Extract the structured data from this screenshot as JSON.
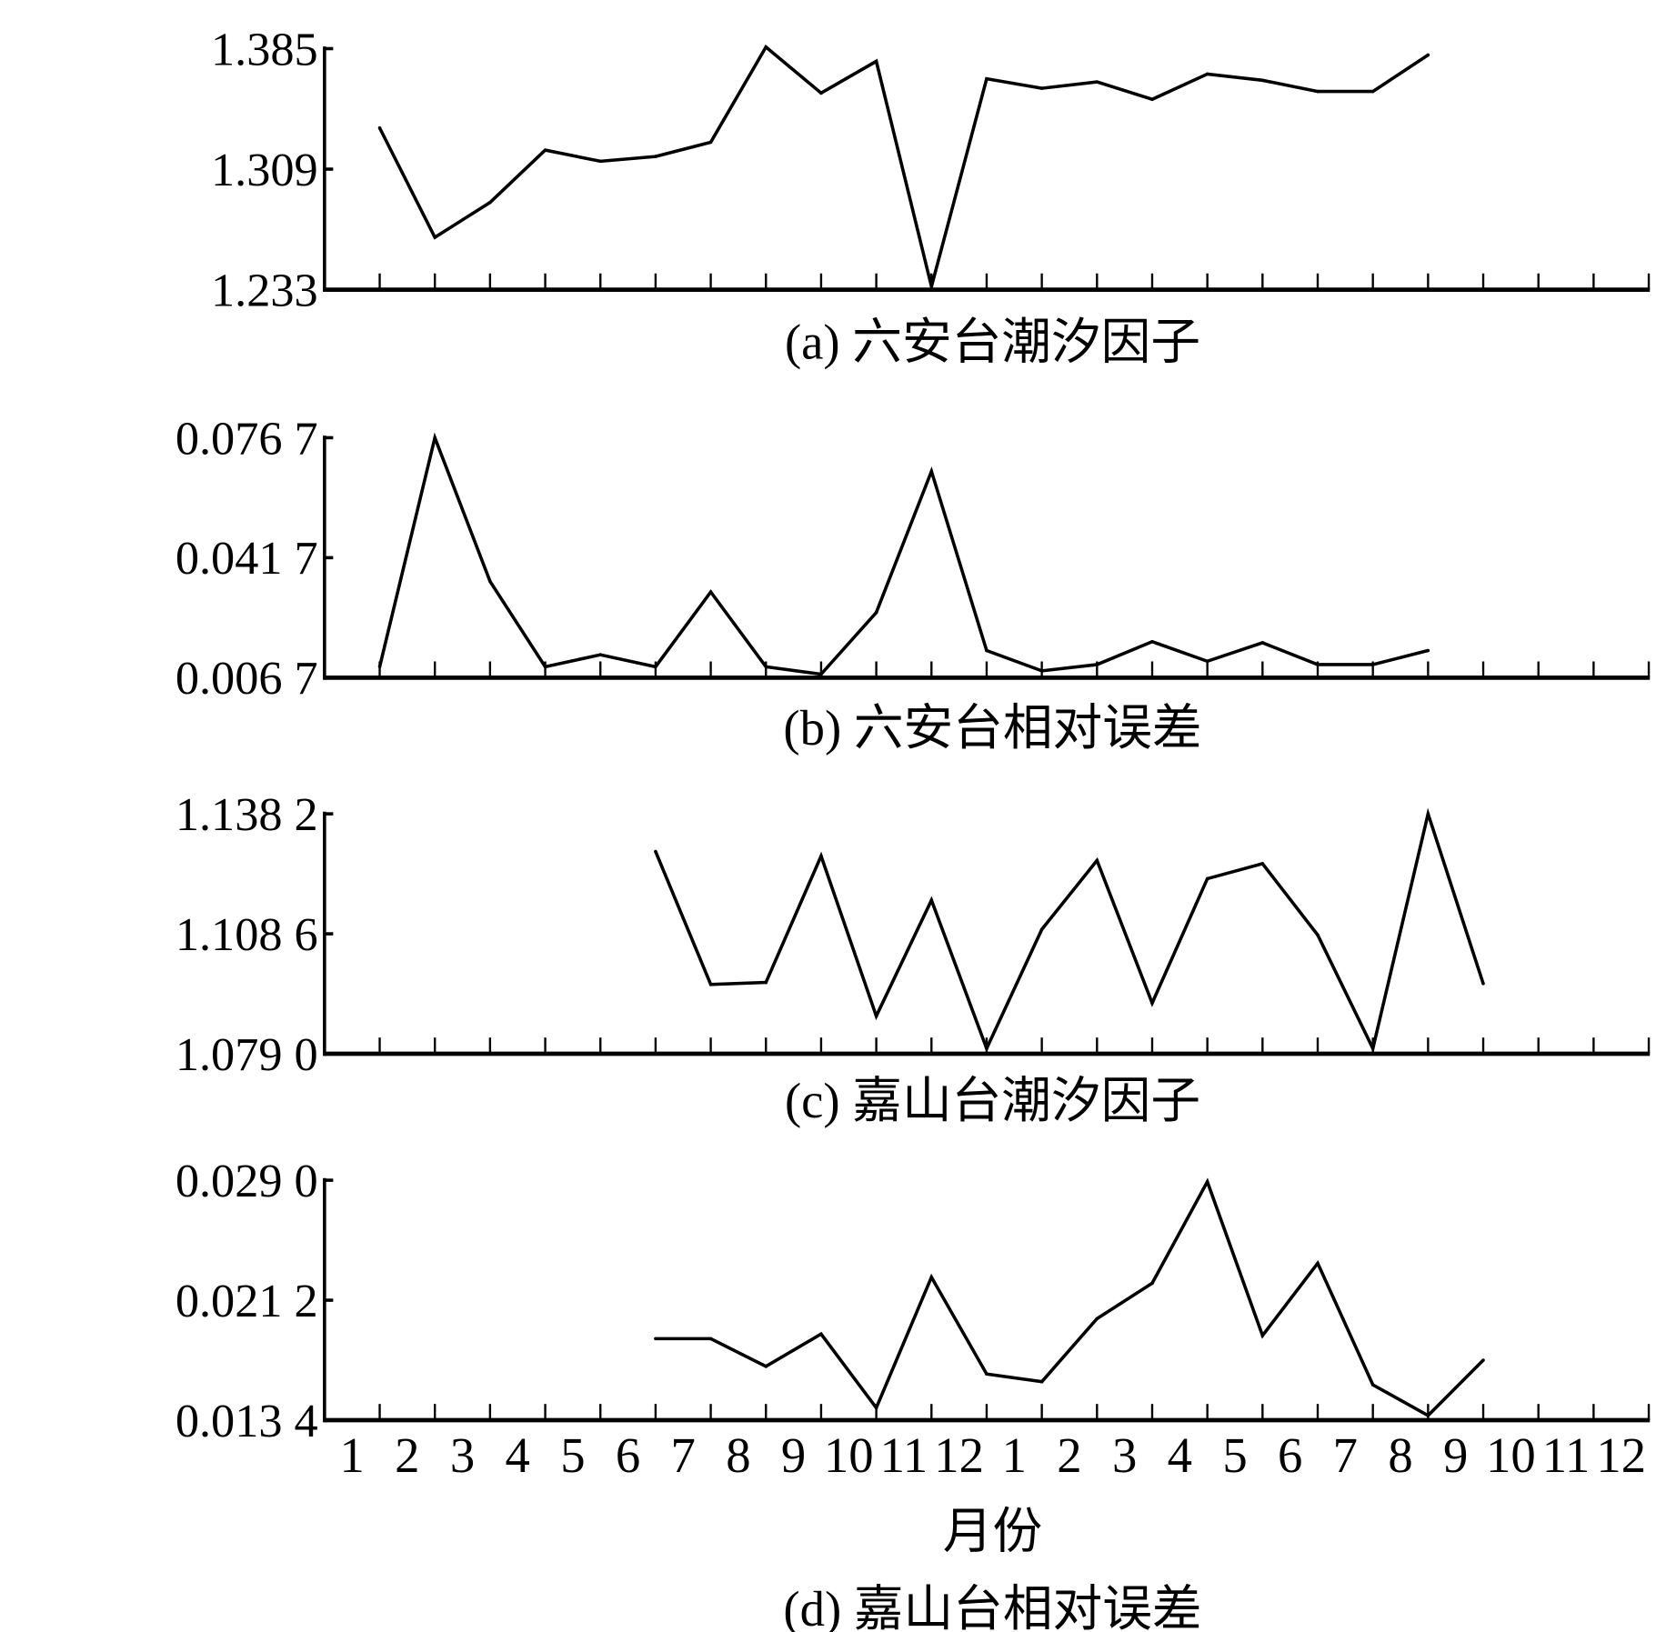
{
  "chart_data": [
    {
      "type": "line",
      "title": "(a) 六安台潮汐因子",
      "yticks": [
        "1.385",
        "1.309",
        "1.233"
      ],
      "ylim": [
        1.233,
        1.385
      ],
      "values": [
        1.335,
        1.266,
        1.288,
        1.321,
        1.314,
        1.317,
        1.326,
        1.386,
        1.357,
        1.377,
        1.235,
        1.366,
        1.36,
        1.364,
        1.353,
        1.369,
        1.365,
        1.358,
        1.358,
        1.381,
        null,
        null,
        null,
        null
      ],
      "color": "#000000"
    },
    {
      "type": "line",
      "title": "(b) 六安台相对误差",
      "yticks": [
        "0.076 7",
        "0.041 7",
        "0.006 7"
      ],
      "ylim": [
        0.0067,
        0.0767
      ],
      "values": [
        0.0099,
        0.0767,
        0.0348,
        0.0099,
        0.0134,
        0.0099,
        0.0317,
        0.0099,
        0.0077,
        0.0257,
        0.0669,
        0.0146,
        0.0087,
        0.0105,
        0.0172,
        0.0115,
        0.0169,
        0.0105,
        0.0105,
        0.0146,
        null,
        null,
        null,
        null
      ],
      "color": "#000000"
    },
    {
      "type": "line",
      "title": "(c) 嘉山台潮汐因子",
      "yticks": [
        "1.138 2",
        "1.108 6",
        "1.079 0"
      ],
      "ylim": [
        1.079,
        1.1382
      ],
      "values": [
        null,
        null,
        null,
        null,
        null,
        1.1289,
        1.0961,
        1.0966,
        1.1278,
        1.0883,
        1.1169,
        1.0803,
        1.1097,
        1.1267,
        1.0915,
        1.1222,
        1.1259,
        1.1083,
        1.0803,
        1.1382,
        1.0963,
        null,
        null,
        null
      ],
      "color": "#000000"
    },
    {
      "type": "line",
      "title": "(d) 嘉山台相对误差",
      "xlabel": "月份",
      "categories": [
        "1",
        "2",
        "3",
        "4",
        "5",
        "6",
        "7",
        "8",
        "9",
        "10",
        "11",
        "12",
        "1",
        "2",
        "3",
        "4",
        "5",
        "6",
        "7",
        "8",
        "9",
        "10",
        "11",
        "12"
      ],
      "yticks": [
        "0.029 0",
        "0.021 2",
        "0.013 4"
      ],
      "ylim": [
        0.0134,
        0.029
      ],
      "values": [
        null,
        null,
        null,
        null,
        null,
        0.0187,
        0.0187,
        0.0169,
        0.019,
        0.0142,
        0.0227,
        0.0164,
        0.0159,
        0.02,
        0.0223,
        0.0289,
        0.0189,
        0.0236,
        0.0157,
        0.0137,
        0.0173,
        null,
        null,
        null
      ],
      "color": "#000000"
    }
  ]
}
